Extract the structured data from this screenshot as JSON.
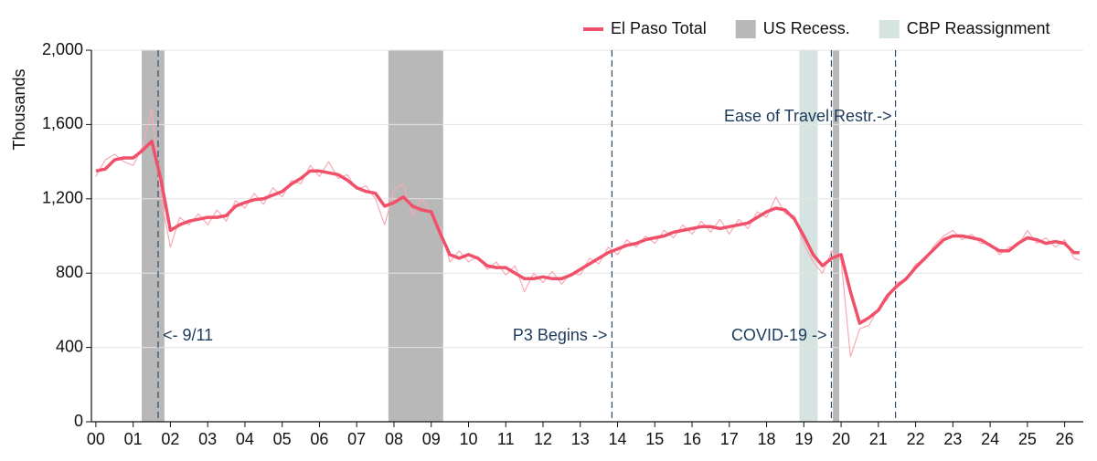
{
  "chart_data": {
    "type": "line",
    "ylabel": "Thousands",
    "x": [
      0,
      0.25,
      0.5,
      0.75,
      1,
      1.25,
      1.5,
      1.75,
      2,
      2.25,
      2.5,
      2.75,
      3,
      3.25,
      3.5,
      3.75,
      4,
      4.25,
      4.5,
      4.75,
      5,
      5.25,
      5.5,
      5.75,
      6,
      6.25,
      6.5,
      6.75,
      7,
      7.25,
      7.5,
      7.75,
      8,
      8.25,
      8.5,
      8.75,
      9,
      9.25,
      9.5,
      9.75,
      10,
      10.25,
      10.5,
      10.75,
      11,
      11.25,
      11.5,
      11.75,
      12,
      12.25,
      12.5,
      12.75,
      13,
      13.25,
      13.5,
      13.75,
      14,
      14.25,
      14.5,
      14.75,
      15,
      15.25,
      15.5,
      15.75,
      16,
      16.25,
      16.5,
      16.75,
      17,
      17.25,
      17.5,
      17.75,
      18,
      18.25,
      18.5,
      18.75,
      19,
      19.25,
      19.5,
      19.75,
      20,
      20.25,
      20.5,
      20.75,
      21,
      21.25,
      21.5,
      21.75,
      22,
      22.25,
      22.5,
      22.75,
      23,
      23.25,
      23.5,
      23.75,
      24,
      24.25,
      24.5,
      24.75,
      25,
      25.25,
      25.5,
      25.75,
      26,
      26.25,
      26.4
    ],
    "series": [
      {
        "color": "#f7aab5",
        "values": [
          1320,
          1410,
          1440,
          1400,
          1380,
          1480,
          1680,
          1200,
          940,
          1100,
          1060,
          1120,
          1060,
          1140,
          1080,
          1190,
          1150,
          1230,
          1170,
          1260,
          1210,
          1300,
          1280,
          1380,
          1320,
          1400,
          1310,
          1330,
          1250,
          1270,
          1200,
          1060,
          1250,
          1280,
          1110,
          1200,
          1120,
          1040,
          860,
          920,
          860,
          890,
          820,
          860,
          790,
          840,
          700,
          800,
          750,
          810,
          740,
          800,
          790,
          880,
          850,
          940,
          900,
          980,
          940,
          1000,
          960,
          1030,
          990,
          1060,
          1010,
          1080,
          1020,
          1090,
          1010,
          1090,
          1040,
          1130,
          1100,
          1210,
          1120,
          1110,
          960,
          860,
          800,
          920,
          870,
          350,
          500,
          520,
          610,
          660,
          750,
          760,
          850,
          870,
          950,
          1000,
          1030,
          980,
          1010,
          960,
          960,
          900,
          940,
          950,
          1030,
          960,
          990,
          940,
          980,
          880,
          870
        ]
      },
      {
        "name": "El Paso Total",
        "color": "#f0506a",
        "values": [
          1350,
          1360,
          1410,
          1420,
          1420,
          1460,
          1510,
          1300,
          1030,
          1060,
          1080,
          1090,
          1100,
          1100,
          1110,
          1160,
          1180,
          1195,
          1200,
          1220,
          1240,
          1280,
          1310,
          1350,
          1350,
          1340,
          1330,
          1300,
          1260,
          1240,
          1230,
          1160,
          1180,
          1210,
          1160,
          1140,
          1130,
          1010,
          900,
          880,
          900,
          880,
          840,
          830,
          830,
          800,
          770,
          770,
          780,
          770,
          770,
          790,
          820,
          850,
          880,
          910,
          930,
          950,
          960,
          980,
          990,
          1000,
          1020,
          1030,
          1040,
          1050,
          1050,
          1040,
          1050,
          1060,
          1070,
          1100,
          1130,
          1150,
          1140,
          1090,
          1000,
          900,
          840,
          880,
          900,
          700,
          530,
          560,
          600,
          680,
          730,
          770,
          830,
          880,
          930,
          980,
          1000,
          1000,
          990,
          980,
          950,
          920,
          920,
          960,
          990,
          980,
          960,
          970,
          960,
          910,
          910
        ]
      }
    ],
    "bands": [
      {
        "name": "US Recess.",
        "color": "#b8b8b8",
        "ranges": [
          [
            1.23,
            1.84
          ],
          [
            7.85,
            9.32
          ],
          [
            19.78,
            19.95
          ]
        ]
      },
      {
        "name": "CBP Reassignment",
        "color": "#d5e4e1",
        "ranges": [
          [
            18.88,
            19.37
          ]
        ]
      }
    ],
    "vlines": [
      1.67,
      13.85,
      19.74,
      21.46
    ],
    "annotations": [
      "<- 9/11",
      "P3 Begins ->",
      "COVID-19 ->",
      "Ease of Travel Restr.->"
    ],
    "xlim": [
      -0.12,
      26.5
    ],
    "xticks": [
      {
        "value": 0,
        "label": "00"
      },
      {
        "value": 1,
        "label": "01"
      },
      {
        "value": 2,
        "label": "02"
      },
      {
        "value": 3,
        "label": "03"
      },
      {
        "value": 4,
        "label": "04"
      },
      {
        "value": 5,
        "label": "05"
      },
      {
        "value": 6,
        "label": "06"
      },
      {
        "value": 7,
        "label": "07"
      },
      {
        "value": 8,
        "label": "08"
      },
      {
        "value": 9,
        "label": "09"
      },
      10,
      11,
      12,
      13,
      14,
      15,
      16,
      17,
      18,
      19,
      20,
      21,
      22,
      23,
      24,
      25,
      26
    ],
    "ylim": [
      0,
      2000
    ],
    "yticks": [
      0,
      400,
      800,
      {
        "value": 1200,
        "label": "1,200"
      },
      {
        "value": 1600,
        "label": "1,600"
      },
      {
        "value": 2000,
        "label": "2,000"
      }
    ],
    "grid": true
  }
}
